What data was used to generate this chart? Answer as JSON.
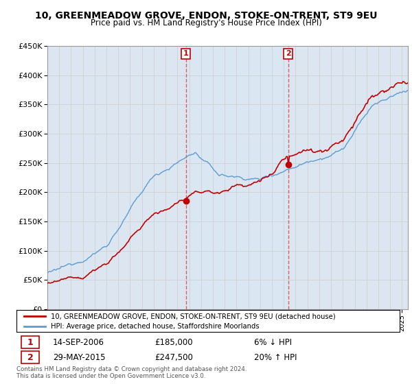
{
  "title": "10, GREENMEADOW GROVE, ENDON, STOKE-ON-TRENT, ST9 9EU",
  "subtitle": "Price paid vs. HM Land Registry's House Price Index (HPI)",
  "legend_line1": "10, GREENMEADOW GROVE, ENDON, STOKE-ON-TRENT, ST9 9EU (detached house)",
  "legend_line2": "HPI: Average price, detached house, Staffordshire Moorlands",
  "sale1_date": "14-SEP-2006",
  "sale1_price": 185000,
  "sale1_hpi": "6% ↓ HPI",
  "sale2_date": "29-MAY-2015",
  "sale2_price": 247500,
  "sale2_hpi": "20% ↑ HPI",
  "footer1": "Contains HM Land Registry data © Crown copyright and database right 2024.",
  "footer2": "This data is licensed under the Open Government Licence v3.0.",
  "ylim": [
    0,
    450000
  ],
  "yticks": [
    0,
    50000,
    100000,
    150000,
    200000,
    250000,
    300000,
    350000,
    400000,
    450000
  ],
  "hpi_color": "#5b9bd5",
  "price_color": "#c00000",
  "vline_color": "#e05050",
  "bg_color": "#dce6f1",
  "span_color": "#dae8f5",
  "plot_bg": "#ffffff",
  "grid_color": "#cccccc",
  "sale1_year": 2006.708,
  "sale2_year": 2015.375
}
